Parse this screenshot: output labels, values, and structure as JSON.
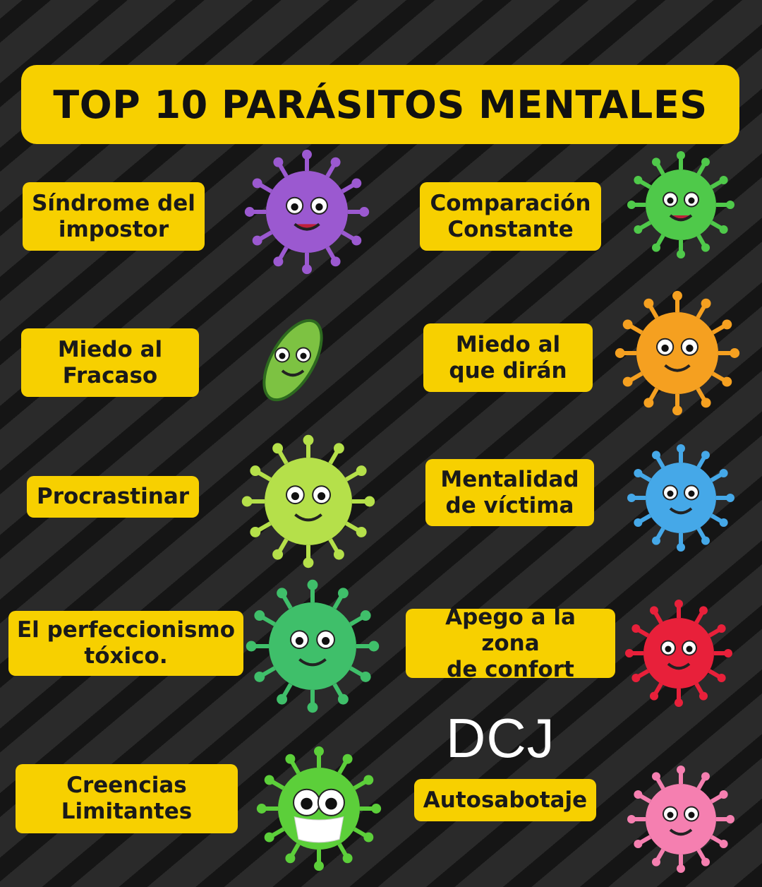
{
  "title": "TOP 10 PARÁSITOS MENTALES",
  "watermark": "DCJ",
  "items": [
    {
      "line1": "Síndrome del",
      "line2": "impostor",
      "virus_color": "#9b59d0"
    },
    {
      "line1": "Miedo al",
      "line2": "Fracaso",
      "virus_color": "#7dc242"
    },
    {
      "line1": "Procrastinar",
      "line2": "",
      "virus_color": "#b5e04a"
    },
    {
      "line1": "El perfeccionismo",
      "line2": "tóxico.",
      "virus_color": "#3fbf6a"
    },
    {
      "line1": "Creencias",
      "line2": "Limitantes",
      "virus_color": "#5ccf3a"
    },
    {
      "line1": "Comparación",
      "line2": "Constante",
      "virus_color": "#4fc94a"
    },
    {
      "line1": "Miedo al",
      "line2": "que dirán",
      "virus_color": "#f5a020"
    },
    {
      "line1": "Mentalidad",
      "line2": "de víctima",
      "virus_color": "#45a8e8"
    },
    {
      "line1": "Apego a la zona",
      "line2": "de confort",
      "virus_color": "#e8203a"
    },
    {
      "line1": "Autosabotaje",
      "line2": "",
      "virus_color": "#f57fb0"
    }
  ],
  "colors": {
    "label_bg": "#f7d000",
    "background": "#232323"
  }
}
